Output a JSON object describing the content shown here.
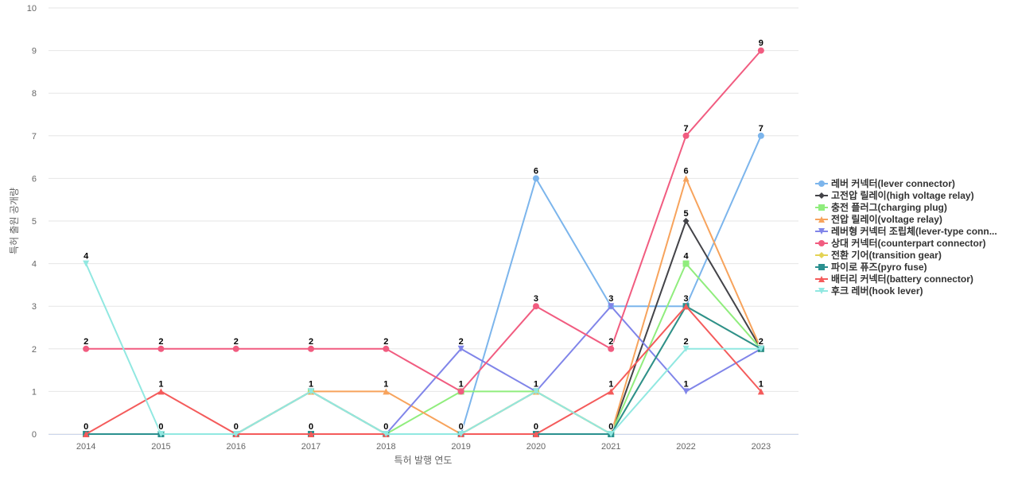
{
  "chart_data": {
    "type": "line",
    "title": "",
    "xlabel": "특허 발행 연도",
    "ylabel": "특허 출원 공개량",
    "categories": [
      "2014",
      "2015",
      "2016",
      "2017",
      "2018",
      "2019",
      "2020",
      "2021",
      "2022",
      "2023"
    ],
    "ylim": [
      0,
      10
    ],
    "yticks": [
      0,
      1,
      2,
      3,
      4,
      5,
      6,
      7,
      8,
      9,
      10
    ],
    "grid": true,
    "legend_position": "right",
    "series": [
      {
        "name": "레버 커넥터(lever connector)",
        "color": "#7cb5ec",
        "marker": "circle",
        "values": [
          0,
          0,
          0,
          1,
          0,
          0,
          6,
          3,
          3,
          7
        ]
      },
      {
        "name": "고전압 릴레이(high voltage relay)",
        "color": "#434348",
        "marker": "diamond",
        "values": [
          0,
          0,
          0,
          1,
          0,
          0,
          1,
          0,
          5,
          2
        ]
      },
      {
        "name": "충전 플러그(charging plug)",
        "color": "#90ed7d",
        "marker": "square",
        "values": [
          0,
          0,
          0,
          1,
          0,
          1,
          1,
          0,
          4,
          2
        ]
      },
      {
        "name": "전압 릴레이(voltage relay)",
        "color": "#f7a35c",
        "marker": "triangle",
        "values": [
          0,
          0,
          0,
          1,
          1,
          0,
          1,
          0,
          6,
          2
        ]
      },
      {
        "name": "레버형 커넥터 조립체(lever-type conn...",
        "color": "#8085e9",
        "marker": "triangle-down",
        "values": [
          0,
          0,
          0,
          1,
          0,
          2,
          1,
          3,
          1,
          2
        ]
      },
      {
        "name": "상대 커넥터(counterpart connector)",
        "color": "#f15c80",
        "marker": "circle",
        "values": [
          2,
          2,
          2,
          2,
          2,
          1,
          3,
          2,
          7,
          9
        ]
      },
      {
        "name": "전환 기어(transition gear)",
        "color": "#e4d354",
        "marker": "diamond",
        "values": [
          0,
          0,
          0,
          1,
          0,
          0,
          1,
          0,
          3,
          2
        ]
      },
      {
        "name": "파이로 퓨즈(pyro fuse)",
        "color": "#2b908f",
        "marker": "square",
        "values": [
          0,
          0,
          0,
          0,
          0,
          0,
          0,
          0,
          3,
          2
        ]
      },
      {
        "name": "배터리 커넥터(battery connector)",
        "color": "#f45b5b",
        "marker": "triangle",
        "values": [
          0,
          1,
          0,
          0,
          0,
          0,
          0,
          1,
          3,
          1
        ]
      },
      {
        "name": "후크 레버(hook lever)",
        "color": "#91e8e1",
        "marker": "triangle-down",
        "values": [
          4,
          0,
          0,
          1,
          0,
          0,
          1,
          0,
          2,
          2
        ]
      }
    ],
    "data_labels": [
      {
        "series": 5,
        "index": 0,
        "text": "2"
      },
      {
        "series": 8,
        "index": 0,
        "text": "0"
      },
      {
        "series": 9,
        "index": 0,
        "text": "4"
      },
      {
        "series": 5,
        "index": 1,
        "text": "2"
      },
      {
        "series": 8,
        "index": 1,
        "text": "1"
      },
      {
        "series": 9,
        "index": 1,
        "text": "0"
      },
      {
        "series": 5,
        "index": 2,
        "text": "2"
      },
      {
        "series": 9,
        "index": 2,
        "text": "0"
      },
      {
        "series": 5,
        "index": 3,
        "text": "2"
      },
      {
        "series": 9,
        "index": 3,
        "text": "1"
      },
      {
        "series": 8,
        "index": 3,
        "text": "0"
      },
      {
        "series": 5,
        "index": 4,
        "text": "2"
      },
      {
        "series": 3,
        "index": 4,
        "text": "1"
      },
      {
        "series": 9,
        "index": 4,
        "text": "0"
      },
      {
        "series": 4,
        "index": 5,
        "text": "2"
      },
      {
        "series": 2,
        "index": 5,
        "text": "1"
      },
      {
        "series": 9,
        "index": 5,
        "text": "0"
      },
      {
        "series": 0,
        "index": 6,
        "text": "6"
      },
      {
        "series": 5,
        "index": 6,
        "text": "3"
      },
      {
        "series": 9,
        "index": 6,
        "text": "1"
      },
      {
        "series": 8,
        "index": 6,
        "text": "0"
      },
      {
        "series": 0,
        "index": 7,
        "text": "3"
      },
      {
        "series": 5,
        "index": 7,
        "text": "2"
      },
      {
        "series": 8,
        "index": 7,
        "text": "1"
      },
      {
        "series": 9,
        "index": 7,
        "text": "0"
      },
      {
        "series": 5,
        "index": 8,
        "text": "7"
      },
      {
        "series": 3,
        "index": 8,
        "text": "6"
      },
      {
        "series": 1,
        "index": 8,
        "text": "5"
      },
      {
        "series": 2,
        "index": 8,
        "text": "4"
      },
      {
        "series": 8,
        "index": 8,
        "text": "3"
      },
      {
        "series": 9,
        "index": 8,
        "text": "2"
      },
      {
        "series": 4,
        "index": 8,
        "text": "1"
      },
      {
        "series": 5,
        "index": 9,
        "text": "9"
      },
      {
        "series": 0,
        "index": 9,
        "text": "7"
      },
      {
        "series": 9,
        "index": 9,
        "text": "2"
      },
      {
        "series": 8,
        "index": 9,
        "text": "1"
      }
    ]
  }
}
